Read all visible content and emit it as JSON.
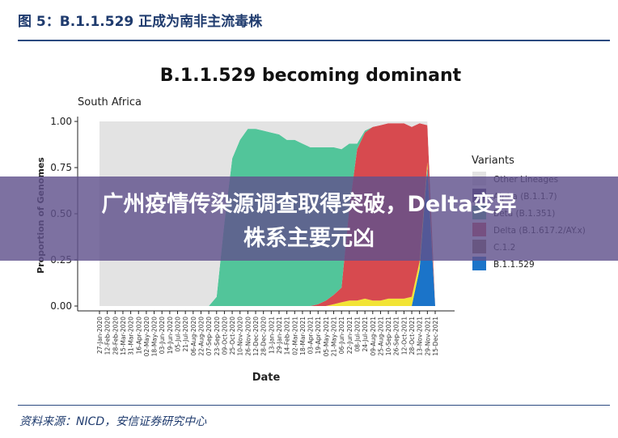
{
  "figure": {
    "caption": "图 5：B.1.1.529 正成为南非主流毒株",
    "source": "资料来源：NICD，安信证券研究中心"
  },
  "banner": {
    "line1": "广州疫情传染源调查取得突破，Delta变异",
    "line2": "株系主要元凶"
  },
  "colors": {
    "Other Lineages": "#e3e3e3",
    "Alpha (B.1.1.7)": "#4b3f6e",
    "Beta (B.1.351)": "#52c59a",
    "Delta (B.1.617.2/AY.x)": "#d74a4f",
    "C.1.2": "#8c6a55",
    "B.1.1.529": "#1b74c9",
    "Yellow": "#f2e435"
  },
  "chart_data": {
    "type": "area",
    "title": "B.1.1.529 becoming dominant",
    "subtitle": "South Africa",
    "xlabel": "Date",
    "ylabel": "Proportion of Genomes",
    "ylim": [
      0,
      1
    ],
    "yticks": [
      "0.00",
      "0.25",
      "0.50",
      "0.75",
      "1.00"
    ],
    "x_ticks": [
      "27-Jan-2020",
      "12-Feb-2020",
      "28-Feb-2020",
      "15-Mar-2020",
      "31-Mar-2020",
      "16-Apr-2020",
      "02-May-2020",
      "18-May-2020",
      "03-Jun-2020",
      "19-Jun-2020",
      "05-Jul-2020",
      "21-Jul-2020",
      "06-Aug-2020",
      "22-Aug-2020",
      "07-Sep-2020",
      "23-Sep-2020",
      "09-Oct-2020",
      "25-Oct-2020",
      "10-Nov-2020",
      "26-Nov-2020",
      "12-Dec-2020",
      "28-Dec-2020",
      "13-Jan-2021",
      "29-Jan-2021",
      "14-Feb-2021",
      "02-Mar-2021",
      "18-Mar-2021",
      "03-Apr-2021",
      "19-Apr-2021",
      "05-May-2021",
      "21-May-2021",
      "06-Jun-2021",
      "22-Jun-2021",
      "08-Jul-2021",
      "24-Jul-2021",
      "09-Aug-2021",
      "25-Aug-2021",
      "10-Sep-2021",
      "26-Sep-2021",
      "12-Oct-2021",
      "28-Oct-2021",
      "13-Nov-2021",
      "29-Nov-2021",
      "15-Dec-2021"
    ],
    "legend_title": "Variants",
    "legend_entries": [
      "Other Lineages",
      "Alpha (B.1.1.7)",
      "Beta (B.1.351)",
      "Delta (B.1.617.2/AY.x)",
      "C.1.2",
      "B.1.1.529"
    ],
    "legend_position": "right",
    "x": [
      0,
      1,
      2,
      3,
      4,
      5,
      6,
      7,
      8,
      9,
      10,
      11,
      12,
      13,
      14,
      15,
      16,
      17,
      18,
      19,
      20,
      21,
      22,
      23,
      24,
      25,
      26,
      27,
      28,
      29,
      30,
      31,
      32,
      33,
      34,
      35,
      36,
      37,
      38,
      39,
      40,
      41,
      42,
      43
    ],
    "series": [
      {
        "name": "B.1.1.529",
        "values": [
          0,
          0,
          0,
          0,
          0,
          0,
          0,
          0,
          0,
          0,
          0,
          0,
          0,
          0,
          0,
          0,
          0,
          0,
          0,
          0,
          0,
          0,
          0,
          0,
          0,
          0,
          0,
          0,
          0,
          0,
          0,
          0,
          0,
          0,
          0,
          0,
          0,
          0,
          0,
          0,
          0,
          0.2,
          0.75,
          0
        ]
      },
      {
        "name": "C.1.2",
        "values": [
          0,
          0,
          0,
          0,
          0,
          0,
          0,
          0,
          0,
          0,
          0,
          0,
          0,
          0,
          0,
          0,
          0,
          0,
          0,
          0,
          0,
          0,
          0,
          0,
          0,
          0,
          0,
          0,
          0,
          0,
          0,
          0,
          0,
          0,
          0,
          0,
          0,
          0,
          0,
          0,
          0,
          0,
          0,
          0
        ]
      },
      {
        "name": "",
        "values": [
          0,
          0,
          0,
          0,
          0,
          0,
          0,
          0,
          0,
          0,
          0,
          0,
          0,
          0,
          0,
          0,
          0,
          0,
          0,
          0,
          0,
          0,
          0,
          0,
          0,
          0,
          0,
          0,
          0,
          0,
          0.01,
          0.02,
          0.03,
          0.03,
          0.04,
          0.03,
          0.03,
          0.04,
          0.04,
          0.04,
          0.05,
          0.04,
          0.03,
          0
        ]
      },
      {
        "name": "Delta (B.1.617.2/AY.x)",
        "values": [
          0,
          0,
          0,
          0,
          0,
          0,
          0,
          0,
          0,
          0,
          0,
          0,
          0,
          0,
          0,
          0,
          0,
          0,
          0,
          0,
          0,
          0,
          0,
          0,
          0,
          0,
          0,
          0,
          0.01,
          0.03,
          0.05,
          0.08,
          0.5,
          0.82,
          0.9,
          0.94,
          0.95,
          0.95,
          0.95,
          0.95,
          0.92,
          0.75,
          0.2,
          0
        ]
      },
      {
        "name": "Beta (B.1.351)",
        "values": [
          0,
          0,
          0,
          0,
          0,
          0,
          0,
          0,
          0,
          0,
          0,
          0,
          0,
          0,
          0,
          0.05,
          0.45,
          0.8,
          0.9,
          0.96,
          0.96,
          0.95,
          0.94,
          0.93,
          0.9,
          0.9,
          0.88,
          0.86,
          0.85,
          0.83,
          0.8,
          0.75,
          0.35,
          0.03,
          0.01,
          0,
          0,
          0,
          0,
          0,
          0,
          0,
          0,
          0
        ]
      },
      {
        "name": "Other Lineages",
        "values": [
          1,
          1,
          1,
          1,
          1,
          1,
          1,
          1,
          1,
          1,
          1,
          1,
          1,
          1,
          1,
          0.95,
          0.55,
          0.2,
          0.1,
          0.04,
          0.04,
          0.05,
          0.06,
          0.07,
          0.1,
          0.1,
          0.12,
          0.14,
          0.14,
          0.14,
          0.14,
          0.15,
          0.12,
          0.12,
          0.05,
          0.03,
          0.02,
          0.01,
          0.01,
          0.01,
          0.03,
          0.01,
          0.02,
          0
        ]
      }
    ]
  }
}
